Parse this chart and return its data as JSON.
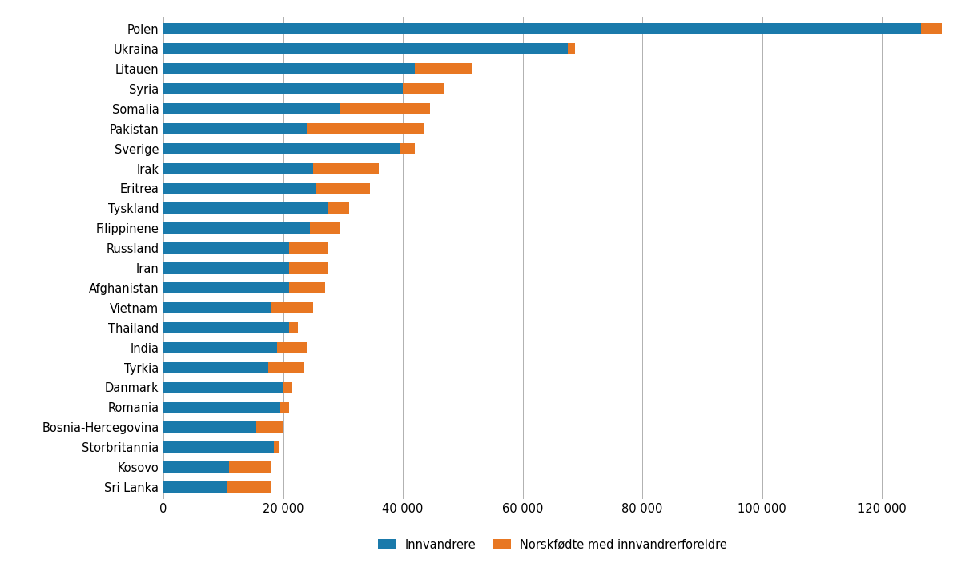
{
  "countries": [
    "Polen",
    "Ukraina",
    "Litauen",
    "Syria",
    "Somalia",
    "Pakistan",
    "Sverige",
    "Irak",
    "Eritrea",
    "Tyskland",
    "Filippinene",
    "Russland",
    "Iran",
    "Afghanistan",
    "Vietnam",
    "Thailand",
    "India",
    "Tyrkia",
    "Danmark",
    "Romania",
    "Bosnia-Hercegovina",
    "Storbritannia",
    "Kosovo",
    "Sri Lanka"
  ],
  "innvandrere": [
    126500,
    67500,
    42000,
    40000,
    29500,
    24000,
    39500,
    25000,
    25500,
    27500,
    24500,
    21000,
    21000,
    21000,
    18000,
    21000,
    19000,
    17500,
    20000,
    19500,
    15500,
    18500,
    11000,
    10500
  ],
  "norskfodte": [
    7000,
    1200,
    9500,
    7000,
    15000,
    19500,
    2500,
    11000,
    9000,
    3500,
    5000,
    6500,
    6500,
    6000,
    7000,
    1500,
    5000,
    6000,
    1500,
    1500,
    4500,
    800,
    7000,
    7500
  ],
  "color_innvandrere": "#1a7aab",
  "color_norskfodte": "#e87722",
  "legend_innvandrere": "Innvandrere",
  "legend_norskfodte": "Norskfødte med innvandrerforeldre",
  "xlim_max": 130000,
  "xticks": [
    0,
    20000,
    40000,
    60000,
    80000,
    100000,
    120000
  ],
  "xtick_labels": [
    "0",
    "20 000",
    "40 000",
    "60 000",
    "80 000",
    "100 000",
    "120 000"
  ],
  "background_color": "#ffffff",
  "grid_color": "#b0b0b0",
  "bar_height": 0.55
}
